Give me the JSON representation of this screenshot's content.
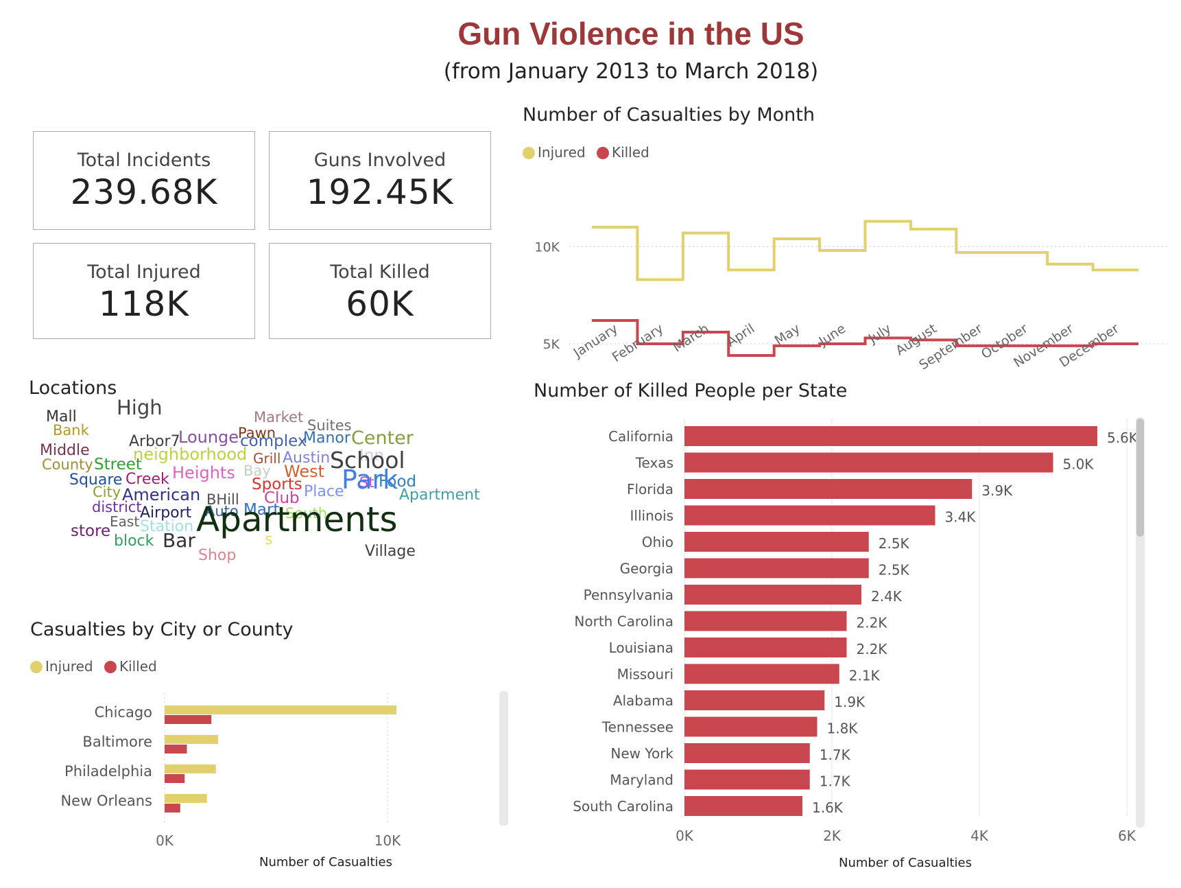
{
  "header": {
    "title": "Gun Violence in the US",
    "subtitle": "(from January 2013 to March 2018)"
  },
  "kpis": [
    {
      "label": "Total Incidents",
      "value": "239.68K"
    },
    {
      "label": "Guns Involved",
      "value": "192.45K"
    },
    {
      "label": "Total Injured",
      "value": "118K"
    },
    {
      "label": "Total Killed",
      "value": "60K"
    }
  ],
  "colors": {
    "injured": "#e2cf6e",
    "killed": "#c8474f",
    "grid": "#e6e6e6",
    "scrollbar": "#e9e9e9",
    "scroll_thumb": "#c4c4c4"
  },
  "monthly": {
    "title": "Number of Casualties by Month",
    "legend": [
      "Injured",
      "Killed"
    ]
  },
  "locations": {
    "title": "Locations",
    "words": [
      {
        "text": "Mall",
        "color": "#333333"
      },
      {
        "text": "Bank",
        "color": "#b09a22"
      },
      {
        "text": "High",
        "color": "#444444"
      },
      {
        "text": "Market",
        "color": "#a07a80"
      },
      {
        "text": "Suites",
        "color": "#707070"
      },
      {
        "text": "Pawn",
        "color": "#7a3a1a"
      },
      {
        "text": "Arbor7",
        "color": "#404040"
      },
      {
        "text": "Lounge",
        "color": "#8a50a0"
      },
      {
        "text": "complex",
        "color": "#4060b0"
      },
      {
        "text": "Manor",
        "color": "#3070b0"
      },
      {
        "text": "Center",
        "color": "#80a040"
      },
      {
        "text": "Middle",
        "color": "#7a3050"
      },
      {
        "text": "County",
        "color": "#a09030"
      },
      {
        "text": "Street",
        "color": "#30a030"
      },
      {
        "text": "neighborhood",
        "color": "#c0d040"
      },
      {
        "text": "Grill",
        "color": "#a05030"
      },
      {
        "text": "Austin",
        "color": "#8080e0"
      },
      {
        "text": "Inn",
        "color": "#d8c8d8"
      },
      {
        "text": "School",
        "color": "#404040"
      },
      {
        "text": "Bay",
        "color": "#c0d0c0"
      },
      {
        "text": "West",
        "color": "#d06030"
      },
      {
        "text": "Square",
        "color": "#2050a0"
      },
      {
        "text": "Creek",
        "color": "#a02070"
      },
      {
        "text": "Heights",
        "color": "#e060c0"
      },
      {
        "text": "Sports",
        "color": "#e03030"
      },
      {
        "text": "St",
        "color": "#d040d0"
      },
      {
        "text": "Food",
        "color": "#3080c0"
      },
      {
        "text": "City",
        "color": "#90a030"
      },
      {
        "text": "American",
        "color": "#303090"
      },
      {
        "text": "BHill",
        "color": "#505050"
      },
      {
        "text": "Club",
        "color": "#d040a0"
      },
      {
        "text": "Place",
        "color": "#8090f0"
      },
      {
        "text": "Park",
        "color": "#4080e0"
      },
      {
        "text": "Apartment",
        "color": "#40a0a0"
      },
      {
        "text": "district",
        "color": "#7030a0"
      },
      {
        "text": "Airport",
        "color": "#202060"
      },
      {
        "text": "Auto",
        "color": "#3060a0"
      },
      {
        "text": "Mart",
        "color": "#3070c0"
      },
      {
        "text": "South",
        "color": "#a0e060"
      },
      {
        "text": "East",
        "color": "#606060"
      },
      {
        "text": "Station",
        "color": "#a0e0e0"
      },
      {
        "text": "store",
        "color": "#702070"
      },
      {
        "text": "block",
        "color": "#30a060"
      },
      {
        "text": "Bar",
        "color": "#303030"
      },
      {
        "text": "Apartments",
        "color": "#103010"
      },
      {
        "text": "s",
        "color": "#e0e060"
      },
      {
        "text": "Village",
        "color": "#404040"
      },
      {
        "text": "Shop",
        "color": "#e08090"
      }
    ]
  },
  "city": {
    "title": "Casualties by City or County",
    "legend": [
      "Injured",
      "Killed"
    ]
  },
  "state": {
    "title": "Number of Killed People per State"
  },
  "chart_data": [
    {
      "type": "line",
      "title": "Number of Casualties by Month",
      "x": [
        "January",
        "February",
        "March",
        "April",
        "May",
        "June",
        "July",
        "August",
        "September",
        "October",
        "November",
        "December"
      ],
      "series": [
        {
          "name": "Injured",
          "values": [
            11000,
            8300,
            10700,
            8800,
            10400,
            9800,
            11300,
            10900,
            9700,
            9700,
            9100,
            8800
          ]
        },
        {
          "name": "Killed",
          "values": [
            6200,
            5000,
            5600,
            4400,
            4900,
            5000,
            5300,
            5200,
            4900,
            4900,
            4900,
            5000
          ]
        }
      ],
      "yticks": [
        "5K",
        "10K"
      ],
      "ylim": [
        3800,
        11600
      ],
      "legend": "top-left",
      "line_shape": "step"
    },
    {
      "type": "bar",
      "orientation": "horizontal",
      "title": "Casualties by City or County",
      "categories": [
        "Chicago",
        "Baltimore",
        "Philadelphia",
        "New Orleans"
      ],
      "series": [
        {
          "name": "Injured",
          "values": [
            10400,
            2400,
            2300,
            1900
          ]
        },
        {
          "name": "Killed",
          "values": [
            2100,
            1000,
            900,
            700
          ]
        }
      ],
      "xlabel": "Number of Casualties",
      "xticks": [
        "0K",
        "10K"
      ],
      "xlim": [
        0,
        10000
      ],
      "legend": "top-left"
    },
    {
      "type": "bar",
      "orientation": "horizontal",
      "title": "Number of Killed People per State",
      "categories": [
        "California",
        "Texas",
        "Florida",
        "Illinois",
        "Ohio",
        "Georgia",
        "Pennsylvania",
        "North Carolina",
        "Louisiana",
        "Missouri",
        "Alabama",
        "Tennessee",
        "New York",
        "Maryland",
        "South Carolina"
      ],
      "values": [
        5600,
        5000,
        3900,
        3400,
        2500,
        2500,
        2400,
        2200,
        2200,
        2100,
        1900,
        1800,
        1700,
        1700,
        1600
      ],
      "labels": [
        "5.6K",
        "5.0K",
        "3.9K",
        "3.4K",
        "2.5K",
        "2.5K",
        "2.4K",
        "2.2K",
        "2.2K",
        "2.1K",
        "1.9K",
        "1.8K",
        "1.7K",
        "1.7K",
        "1.6K"
      ],
      "xlabel": "Number of Casualties",
      "xticks": [
        "0K",
        "2K",
        "4K",
        "6K"
      ],
      "xlim": [
        0,
        6000
      ],
      "grid": true
    }
  ]
}
